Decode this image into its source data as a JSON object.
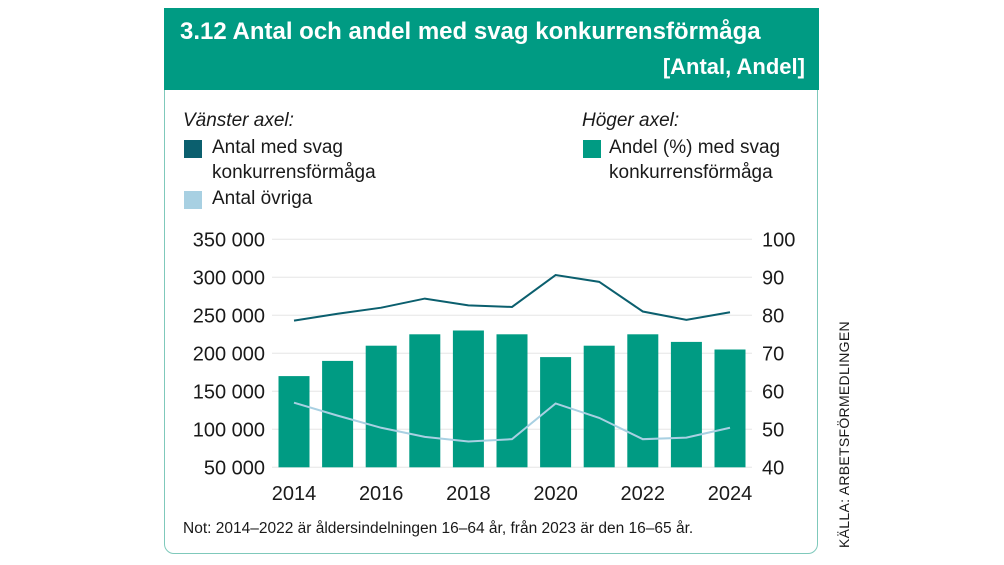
{
  "header": {
    "title": "3.12  Antal och andel med svag konkurrensförmåga",
    "subtitle": "[Antal, Andel]"
  },
  "legend": {
    "left_heading": "Vänster axel:",
    "right_heading": "Höger axel:",
    "items": [
      {
        "line1": "Antal med svag",
        "line2": "konkurrensförmåga",
        "color": "#0b5f6e"
      },
      {
        "line1": "Antal övriga",
        "line2": "",
        "color": "#a8d0e2"
      },
      {
        "line1": "Andel (%) med svag",
        "line2": "konkurrensförmåga",
        "color": "#009b83"
      }
    ]
  },
  "note": "Not: 2014–2022 är åldersindelningen 16–64 år, från 2023 är den 16–65 år.",
  "source": "KÄLLA: ARBETSFÖRMEDLINGEN",
  "chart_data": {
    "type": "bar+line",
    "title": "Antal och andel med svag konkurrensförmåga",
    "x": [
      2014,
      2015,
      2016,
      2017,
      2018,
      2019,
      2020,
      2021,
      2022,
      2023,
      2024
    ],
    "x_tick_labels": [
      "2014",
      "2016",
      "2018",
      "2020",
      "2022",
      "2024"
    ],
    "left_axis": {
      "range": [
        50000,
        350000
      ],
      "ticks": [
        "50 000",
        "100 000",
        "150 000",
        "200 000",
        "250 000",
        "300 000",
        "350 000"
      ]
    },
    "right_axis": {
      "range": [
        40,
        100
      ],
      "ticks": [
        "40",
        "50",
        "60",
        "70",
        "80",
        "90",
        "100"
      ]
    },
    "grid": true,
    "series": [
      {
        "name": "Andel (%) med svag konkurrensförmåga",
        "type": "bar",
        "axis": "right",
        "color": "#009b83",
        "values": [
          64,
          68,
          72,
          75,
          76,
          75,
          69,
          72,
          75,
          73,
          71
        ]
      },
      {
        "name": "Antal med svag konkurrensförmåga",
        "type": "line",
        "axis": "left",
        "color": "#0b5f6e",
        "values": [
          243000,
          252000,
          260000,
          272000,
          263000,
          261000,
          303000,
          294000,
          255000,
          244000,
          254000
        ]
      },
      {
        "name": "Antal övriga",
        "type": "line",
        "axis": "left",
        "color": "#a8d0e2",
        "values": [
          135000,
          118000,
          102000,
          90000,
          84000,
          87000,
          134000,
          115000,
          87000,
          89000,
          102000
        ]
      }
    ]
  }
}
